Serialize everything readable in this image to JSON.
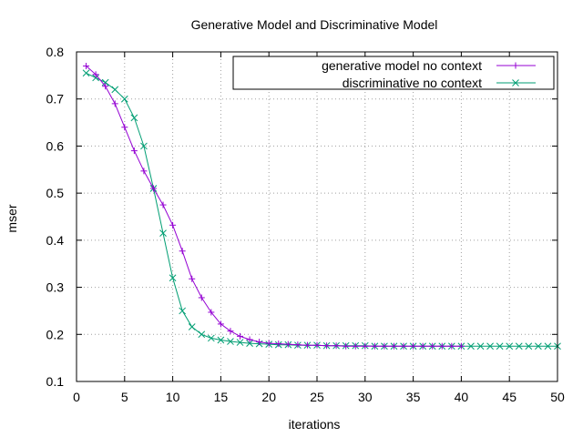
{
  "chart_data": {
    "type": "line",
    "title": "Generative Model and Discriminative Model",
    "xlabel": "iterations",
    "ylabel": "mser",
    "xlim": [
      0,
      50
    ],
    "ylim": [
      0.1,
      0.8
    ],
    "xticks": [
      0,
      5,
      10,
      15,
      20,
      25,
      30,
      35,
      40,
      45,
      50
    ],
    "yticks": [
      0.1,
      0.2,
      0.3,
      0.4,
      0.5,
      0.6,
      0.7,
      0.8
    ],
    "xtick_labels": [
      "0",
      "5",
      "10",
      "15",
      "20",
      "25",
      "30",
      "35",
      "40",
      "45",
      "50"
    ],
    "ytick_labels": [
      "0.1",
      "0.2",
      "0.3",
      "0.4",
      "0.5",
      "0.6",
      "0.7",
      "0.8"
    ],
    "grid": true,
    "legend_position": "top-right",
    "series": [
      {
        "name": "generative model no context",
        "color": "#9400d3",
        "marker": "plus",
        "x": [
          1,
          2,
          3,
          4,
          5,
          6,
          7,
          8,
          9,
          10,
          11,
          12,
          13,
          14,
          15,
          16,
          17,
          18,
          19,
          20,
          21,
          22,
          23,
          24,
          25,
          26,
          27,
          28,
          29,
          30,
          31,
          32,
          33,
          34,
          35,
          36,
          37,
          38,
          39,
          40
        ],
        "y": [
          0.77,
          0.752,
          0.727,
          0.69,
          0.64,
          0.59,
          0.547,
          0.51,
          0.475,
          0.432,
          0.377,
          0.318,
          0.278,
          0.247,
          0.222,
          0.207,
          0.196,
          0.189,
          0.184,
          0.181,
          0.18,
          0.179,
          0.178,
          0.177,
          0.177,
          0.176,
          0.176,
          0.175,
          0.175,
          0.175,
          0.175,
          0.175,
          0.175,
          0.175,
          0.175,
          0.175,
          0.175,
          0.175,
          0.175,
          0.175
        ]
      },
      {
        "name": "discriminative no context",
        "color": "#009e73",
        "marker": "cross",
        "x": [
          1,
          2,
          3,
          4,
          5,
          6,
          7,
          8,
          9,
          10,
          11,
          12,
          13,
          14,
          15,
          16,
          17,
          18,
          19,
          20,
          21,
          22,
          23,
          24,
          25,
          26,
          27,
          28,
          29,
          30,
          31,
          32,
          33,
          34,
          35,
          36,
          37,
          38,
          39,
          40,
          41,
          42,
          43,
          44,
          45,
          46,
          47,
          48,
          49,
          50
        ],
        "y": [
          0.755,
          0.745,
          0.735,
          0.72,
          0.7,
          0.66,
          0.6,
          0.51,
          0.415,
          0.32,
          0.25,
          0.216,
          0.2,
          0.192,
          0.188,
          0.185,
          0.183,
          0.181,
          0.18,
          0.179,
          0.178,
          0.178,
          0.177,
          0.177,
          0.177,
          0.176,
          0.176,
          0.176,
          0.176,
          0.176,
          0.175,
          0.175,
          0.175,
          0.175,
          0.175,
          0.175,
          0.175,
          0.175,
          0.175,
          0.175,
          0.175,
          0.175,
          0.175,
          0.175,
          0.175,
          0.175,
          0.175,
          0.175,
          0.175,
          0.175
        ]
      }
    ]
  }
}
